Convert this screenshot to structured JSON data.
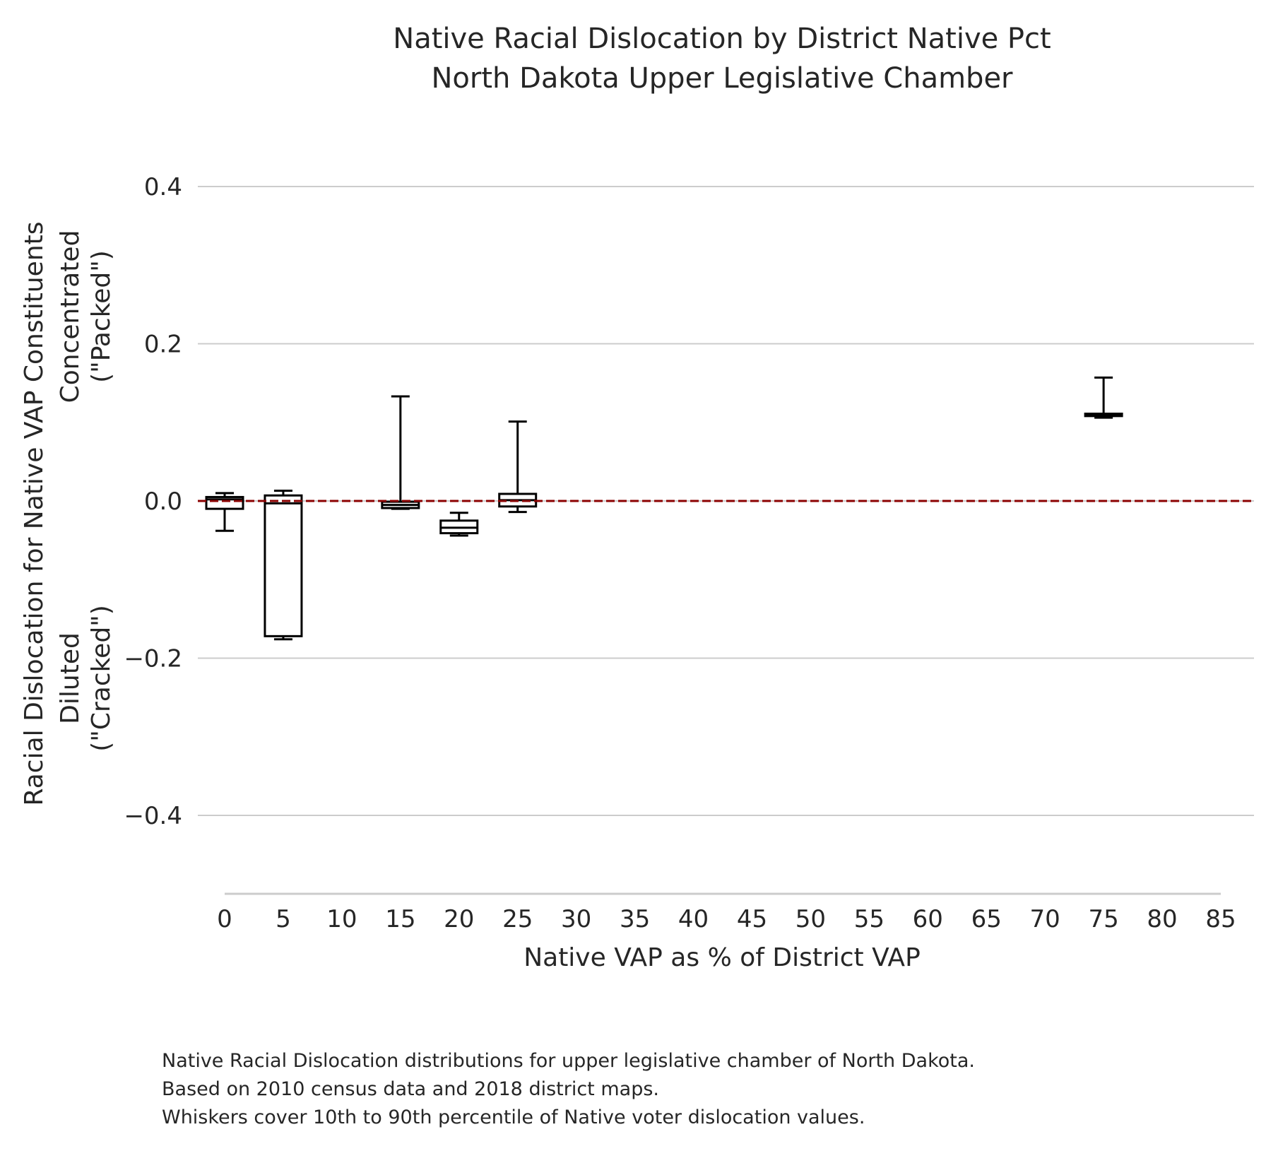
{
  "title_lines": [
    "Native Racial Dislocation by District Native Pct",
    "North Dakota Upper Legislative Chamber"
  ],
  "ylabel_lines": [
    "Racial Dislocation for Native VAP Constituents",
    "Concentrated",
    "(\"Packed\")",
    "Diluted",
    "(\"Cracked\")"
  ],
  "xlabel": "Native VAP as % of District VAP",
  "caption_lines": [
    "Native Racial Dislocation distributions for upper legislative chamber of North Dakota.",
    "Based on 2010 census data and 2018 district maps.",
    "Whiskers cover 10th to 90th percentile of Native voter dislocation values."
  ],
  "colors": {
    "grid": "#cccccc",
    "reference_line": "#8b0000",
    "box": "#000000"
  },
  "chart_data": {
    "type": "box",
    "xlim": [
      0,
      85
    ],
    "ylim": [
      -0.5,
      0.4
    ],
    "x_ticks": [
      0,
      5,
      10,
      15,
      20,
      25,
      30,
      35,
      40,
      45,
      50,
      55,
      60,
      65,
      70,
      75,
      80,
      85
    ],
    "y_ticks": [
      0.4,
      0.2,
      0.0,
      -0.2,
      -0.4
    ],
    "y_tick_labels": [
      "0.4",
      "0.2",
      "0.0",
      "−0.2",
      "−0.4"
    ],
    "grid": "horizontal",
    "reference_line_y": 0.0,
    "boxes": [
      {
        "x": 0,
        "whisker_low": -0.038,
        "q1": -0.01,
        "median": 0.002,
        "q3": 0.005,
        "whisker_high": 0.01
      },
      {
        "x": 5,
        "whisker_low": -0.176,
        "q1": -0.172,
        "median": -0.003,
        "q3": 0.007,
        "whisker_high": 0.013
      },
      {
        "x": 15,
        "whisker_low": -0.01,
        "q1": -0.009,
        "median": -0.005,
        "q3": -0.001,
        "whisker_high": 0.133
      },
      {
        "x": 20,
        "whisker_low": -0.044,
        "q1": -0.041,
        "median": -0.034,
        "q3": -0.025,
        "whisker_high": -0.015
      },
      {
        "x": 25,
        "whisker_low": -0.014,
        "q1": -0.007,
        "median": 0.001,
        "q3": 0.009,
        "whisker_high": 0.101
      },
      {
        "x": 75,
        "whisker_low": 0.106,
        "q1": 0.108,
        "median": 0.11,
        "q3": 0.111,
        "whisker_high": 0.157
      }
    ]
  }
}
